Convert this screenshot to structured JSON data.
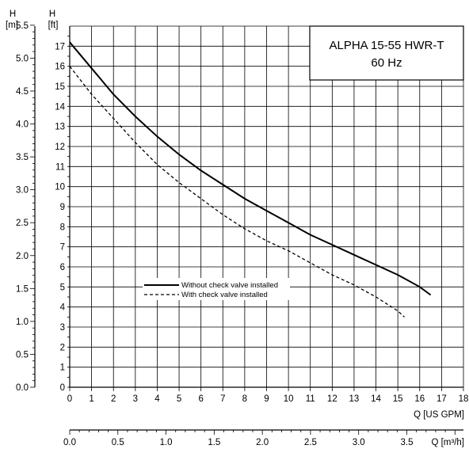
{
  "chart_data": {
    "type": "line",
    "title_line1": "ALPHA 15-55 HWR-T",
    "title_line2": "60 Hz",
    "axes": {
      "x_gpm": {
        "label": "Q [US GPM]",
        "range": [
          0,
          18
        ],
        "ticks": [
          "0",
          "1",
          "2",
          "3",
          "4",
          "5",
          "6",
          "7",
          "8",
          "9",
          "10",
          "11",
          "12",
          "13",
          "14",
          "15",
          "16",
          "17",
          "18"
        ]
      },
      "x_m3h": {
        "label": "Q [m³/h]",
        "range": [
          0,
          4.0883
        ],
        "ticks": [
          "0.0",
          "0.5",
          "1.0",
          "1.5",
          "2.0",
          "2.5",
          "3.0",
          "3.5"
        ]
      },
      "y_ft": {
        "label_top": "H",
        "label_unit": "[ft]",
        "range": [
          0,
          18
        ],
        "ticks": [
          "0",
          "1",
          "2",
          "3",
          "4",
          "5",
          "6",
          "7",
          "8",
          "9",
          "10",
          "11",
          "12",
          "13",
          "14",
          "15",
          "16",
          "17"
        ]
      },
      "y_m": {
        "label_top": "H",
        "label_unit": "[m]",
        "range": [
          0,
          5.4864
        ],
        "ticks": [
          "0.0",
          "0.5",
          "1.0",
          "1.5",
          "2.0",
          "2.5",
          "3.0",
          "3.5",
          "4.0",
          "4.5",
          "5.0",
          "5.5"
        ]
      }
    },
    "grid": true,
    "legend_placement": "center-left",
    "series": [
      {
        "name": "Without check valve installed",
        "style": "solid",
        "x": [
          0,
          1,
          2,
          3,
          4,
          5,
          6,
          7,
          8,
          9,
          10,
          11,
          12,
          13,
          14,
          15,
          16,
          16.5
        ],
        "y": [
          17.2,
          15.9,
          14.6,
          13.5,
          12.5,
          11.6,
          10.8,
          10.1,
          9.4,
          8.8,
          8.2,
          7.6,
          7.1,
          6.6,
          6.1,
          5.6,
          5.0,
          4.6
        ]
      },
      {
        "name": "With check valve installed",
        "style": "dashed",
        "x": [
          0,
          1,
          2,
          3,
          4,
          5,
          6,
          7,
          8,
          9,
          10,
          11,
          12,
          13,
          14,
          15,
          15.3
        ],
        "y": [
          16.0,
          14.6,
          13.4,
          12.2,
          11.1,
          10.2,
          9.4,
          8.6,
          7.9,
          7.3,
          6.8,
          6.2,
          5.6,
          5.1,
          4.5,
          3.8,
          3.5
        ]
      }
    ]
  }
}
